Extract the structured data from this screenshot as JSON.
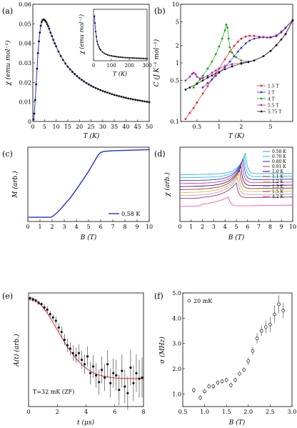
{
  "chart_data": [
    {
      "type": "scatter",
      "panel_label": "(a)",
      "xlabel": "T (K)",
      "ylabel": "χ (emu mol⁻¹)",
      "xlim": [
        0,
        50
      ],
      "ylim": [
        0,
        0.06
      ],
      "xticks": [
        "0",
        "5",
        "10",
        "15",
        "20",
        "25",
        "30",
        "35",
        "40",
        "45",
        "50"
      ],
      "yticks": [
        "0",
        "0.01",
        "0.02",
        "0.03",
        "0.04",
        "0.05",
        "0.06"
      ],
      "x": [
        0.3,
        0.6,
        1.0,
        1.4,
        1.8,
        2.2,
        2.6,
        3.0,
        3.4,
        3.8,
        4.2,
        4.6,
        5.0,
        5.4,
        5.8,
        6.2,
        6.6,
        7.0,
        7.6,
        8.2,
        8.8,
        9.4,
        10,
        11,
        12,
        13,
        14,
        15,
        16,
        17,
        18,
        19,
        20,
        21,
        22,
        23,
        24,
        25,
        26,
        27,
        28,
        29,
        30,
        31,
        32,
        33,
        34,
        35,
        36,
        37,
        38,
        39,
        40,
        41,
        42,
        43,
        44,
        45,
        46,
        47,
        48,
        49,
        50
      ],
      "y": [
        0.001,
        0.004,
        0.011,
        0.019,
        0.027,
        0.035,
        0.041,
        0.0455,
        0.049,
        0.051,
        0.052,
        0.0522,
        0.052,
        0.0515,
        0.0508,
        0.0498,
        0.0488,
        0.0475,
        0.0455,
        0.0437,
        0.0418,
        0.04,
        0.0385,
        0.0358,
        0.0335,
        0.0315,
        0.0297,
        0.0281,
        0.0267,
        0.0254,
        0.0243,
        0.0232,
        0.0222,
        0.0213,
        0.0205,
        0.0197,
        0.019,
        0.0183,
        0.0177,
        0.0171,
        0.0166,
        0.0161,
        0.0156,
        0.0152,
        0.0148,
        0.0144,
        0.014,
        0.0136,
        0.0133,
        0.013,
        0.0127,
        0.0124,
        0.0121,
        0.0118,
        0.0116,
        0.0113,
        0.0111,
        0.0109,
        0.0107,
        0.0105,
        0.0103,
        0.0101,
        0.0099
      ],
      "inset": {
        "xlabel": "T (K)",
        "ylabel": "χ (emu mol⁻¹)",
        "xlim": [
          0,
          300
        ],
        "ylim": [
          0,
          0.06
        ],
        "xticks": [
          "0",
          "100",
          "200",
          "300"
        ],
        "x": [
          5,
          8,
          12,
          16,
          20,
          25,
          30,
          35,
          40,
          50,
          60,
          70,
          80,
          90,
          100,
          110,
          120,
          130,
          140,
          150,
          160,
          170,
          180,
          190,
          200,
          210,
          220,
          230,
          240,
          250,
          260,
          270,
          280,
          290,
          300
        ],
        "y": [
          0.052,
          0.044,
          0.034,
          0.028,
          0.0225,
          0.019,
          0.0162,
          0.014,
          0.0125,
          0.0102,
          0.0087,
          0.0076,
          0.0068,
          0.0062,
          0.0057,
          0.0053,
          0.005,
          0.0047,
          0.0044,
          0.0042,
          0.004,
          0.0038,
          0.0036,
          0.0035,
          0.0034,
          0.0033,
          0.0032,
          0.0031,
          0.003,
          0.0029,
          0.0028,
          0.0027,
          0.0026,
          0.0025,
          0.0024
        ]
      }
    },
    {
      "type": "scatter",
      "panel_label": "(b)",
      "xlabel": "T (K)",
      "ylabel": "C (J K⁻¹ mol⁻¹)",
      "xscale": "log",
      "yscale": "log",
      "xlim": [
        0.3,
        10
      ],
      "ylim": [
        0.1,
        10
      ],
      "xticks": [
        0.5,
        1,
        2,
        5
      ],
      "yticks": [
        0.1,
        0.5,
        1,
        2,
        5,
        10
      ],
      "legend_position": "lower-right",
      "series": [
        {
          "name": "1.5 T",
          "color": "#e8242c",
          "x": [
            0.35,
            0.4,
            0.45,
            0.5,
            0.6,
            0.7,
            0.8,
            0.9,
            1.0,
            1.2,
            1.4,
            1.6,
            1.8,
            2.0,
            2.3,
            2.6,
            3.0,
            3.5,
            4.0,
            4.5,
            5.0,
            6.0,
            7.0,
            8.0,
            10.0
          ],
          "y": [
            0.11,
            0.14,
            0.17,
            0.21,
            0.3,
            0.4,
            0.52,
            0.66,
            0.8,
            1.15,
            1.55,
            1.95,
            2.3,
            2.6,
            2.8,
            2.9,
            2.9,
            2.8,
            2.75,
            2.7,
            2.7,
            2.85,
            3.3,
            3.9,
            5.3
          ]
        },
        {
          "name": "2 T",
          "color": "#2b2bd8",
          "x": [
            0.6,
            0.7,
            0.8,
            0.9,
            1.0,
            1.2,
            1.4,
            1.6,
            1.8,
            2.0,
            2.3,
            2.6,
            3.0,
            3.5,
            4.0,
            5.0,
            6.0,
            7.0,
            8.0,
            10.0
          ],
          "y": [
            0.38,
            0.45,
            0.52,
            0.6,
            0.68,
            0.85,
            1.05,
            1.3,
            1.55,
            1.8,
            2.15,
            2.4,
            2.6,
            2.7,
            2.75,
            2.75,
            2.95,
            3.4,
            4.0,
            5.4
          ]
        },
        {
          "name": "4 T",
          "color": "#14a014",
          "x": [
            0.45,
            0.5,
            0.55,
            0.6,
            0.7,
            0.8,
            0.9,
            1.0,
            1.1,
            1.2,
            1.25,
            1.3,
            1.35,
            1.4,
            1.5,
            1.7,
            2.0,
            2.5,
            3.0,
            4.0,
            5.0,
            6.0,
            8.0,
            10.0
          ],
          "y": [
            0.38,
            0.45,
            0.52,
            0.6,
            0.8,
            1.05,
            1.4,
            1.9,
            2.6,
            3.6,
            4.5,
            4.0,
            2.6,
            1.85,
            1.5,
            1.25,
            1.1,
            1.05,
            1.1,
            1.3,
            1.6,
            2.0,
            3.1,
            5.3
          ]
        },
        {
          "name": "5.5 T",
          "color": "#b21ea8",
          "x": [
            0.35,
            0.4,
            0.43,
            0.45,
            0.48,
            0.5,
            0.55,
            0.6,
            0.7,
            0.8,
            0.9,
            1.0,
            1.2,
            1.5,
            2.0,
            3.0,
            4.0,
            5.0,
            6.0,
            8.0,
            10.0
          ],
          "y": [
            0.5,
            0.58,
            0.65,
            0.68,
            0.64,
            0.58,
            0.54,
            0.55,
            0.6,
            0.68,
            0.74,
            0.8,
            0.88,
            0.95,
            1.0,
            1.1,
            1.3,
            1.6,
            2.0,
            3.1,
            5.3
          ]
        },
        {
          "name": "5.75 T",
          "color": "#111111",
          "x": [
            0.35,
            0.4,
            0.5,
            0.6,
            0.7,
            0.8,
            1.0,
            1.2,
            1.5,
            2.0,
            2.5,
            3.0,
            4.0,
            5.0,
            6.0,
            7.0,
            8.0,
            10.0
          ],
          "y": [
            0.35,
            0.38,
            0.44,
            0.5,
            0.56,
            0.61,
            0.7,
            0.78,
            0.87,
            0.97,
            1.03,
            1.1,
            1.3,
            1.6,
            2.0,
            2.5,
            3.1,
            5.3
          ]
        }
      ]
    },
    {
      "type": "line",
      "panel_label": "(c)",
      "xlabel": "B (T)",
      "ylabel": "M (arb.)",
      "xlim": [
        0,
        10
      ],
      "xticks": [
        "0",
        "1",
        "2",
        "3",
        "4",
        "5",
        "6",
        "7",
        "8",
        "9",
        "10"
      ],
      "series": [
        {
          "name": "0.58 K",
          "color": "#2030d0",
          "x": [
            0,
            0.5,
            1.0,
            1.5,
            1.9,
            2.1,
            2.5,
            3.0,
            3.5,
            4.0,
            4.5,
            5.0,
            5.3,
            5.6,
            5.8,
            6.0,
            6.3,
            7.0,
            8.0,
            9.0,
            10.0
          ],
          "y": [
            0.02,
            0.02,
            0.02,
            0.02,
            0.02,
            0.04,
            0.1,
            0.2,
            0.3,
            0.42,
            0.55,
            0.68,
            0.77,
            0.86,
            0.92,
            0.955,
            0.97,
            0.98,
            0.985,
            0.99,
            0.995
          ]
        }
      ]
    },
    {
      "type": "line",
      "panel_label": "(d)",
      "xlabel": "B (T)",
      "ylabel": "χ (arb.)",
      "xlim": [
        0,
        10
      ],
      "xticks": [
        "0",
        "1",
        "2",
        "3",
        "4",
        "5",
        "6",
        "7",
        "8",
        "9",
        "10"
      ],
      "legend_position": "top-right",
      "series": [
        {
          "name": "0.58 K",
          "color": "#2a9fd6",
          "offset": 0.63,
          "peak": 5.8,
          "amp": 0.28,
          "width": 0.6
        },
        {
          "name": "0.70 K",
          "color": "#00c8c8",
          "offset": 0.59,
          "peak": 5.7,
          "amp": 0.28,
          "width": 0.65
        },
        {
          "name": "0.80 K",
          "color": "#2020e0",
          "offset": 0.55,
          "peak": 5.6,
          "amp": 0.28,
          "width": 0.7
        },
        {
          "name": "0.91 K",
          "color": "#e0205a",
          "offset": 0.51,
          "peak": 5.5,
          "amp": 0.27,
          "width": 0.75
        },
        {
          "name": "1.0 K",
          "color": "#00008b",
          "offset": 0.47,
          "peak": 5.4,
          "amp": 0.26,
          "width": 0.8
        },
        {
          "name": "1.1 K",
          "color": "#8b2020",
          "offset": 0.43,
          "peak": 5.3,
          "amp": 0.25,
          "width": 0.85
        },
        {
          "name": "1.2 K",
          "color": "#d8b020",
          "offset": 0.39,
          "peak": 5.2,
          "amp": 0.24,
          "width": 0.9
        },
        {
          "name": "1.3 K",
          "color": "#a0a0a0",
          "offset": 0.35,
          "peak": 5.1,
          "amp": 0.23,
          "width": 0.95
        },
        {
          "name": "1.5 K",
          "color": "#8b1a8b",
          "offset": 0.31,
          "peak": 5.0,
          "amp": 0.2,
          "width": 1.05
        },
        {
          "name": "4.2 K",
          "color": "#ff40a0",
          "offset": 0.2,
          "peak": 4.3,
          "amp": 0.12,
          "width": 1.6
        }
      ]
    },
    {
      "type": "scatter",
      "panel_label": "(e)",
      "xlabel": "t (μs)",
      "ylabel": "A(t) (arb.)",
      "xlim": [
        0,
        8
      ],
      "xticks": [
        "0",
        "2",
        "4",
        "6",
        "8"
      ],
      "annotation": "T=32 mK (ZF)",
      "x": [
        0.1,
        0.3,
        0.5,
        0.7,
        0.9,
        1.1,
        1.3,
        1.5,
        1.7,
        1.9,
        2.1,
        2.3,
        2.5,
        2.7,
        2.9,
        3.1,
        3.3,
        3.5,
        3.7,
        3.9,
        4.1,
        4.3,
        4.5,
        4.7,
        4.9,
        5.1,
        5.3,
        5.5,
        5.7,
        5.9,
        6.1,
        6.3,
        6.5,
        6.7,
        6.9,
        7.1,
        7.3,
        7.5,
        7.7,
        7.9
      ],
      "y": [
        0.97,
        0.96,
        0.95,
        0.93,
        0.92,
        0.89,
        0.87,
        0.83,
        0.8,
        0.77,
        0.71,
        0.67,
        0.6,
        0.55,
        0.52,
        0.48,
        0.46,
        0.48,
        0.42,
        0.38,
        0.45,
        0.3,
        0.36,
        0.28,
        0.22,
        0.33,
        0.26,
        0.38,
        0.21,
        0.3,
        0.28,
        0.15,
        0.32,
        0.18,
        0.12,
        0.35,
        0.21,
        0.3,
        0.25,
        0.26
      ],
      "err": [
        0.02,
        0.02,
        0.02,
        0.02,
        0.02,
        0.03,
        0.03,
        0.03,
        0.03,
        0.04,
        0.04,
        0.05,
        0.05,
        0.06,
        0.06,
        0.07,
        0.07,
        0.08,
        0.08,
        0.09,
        0.09,
        0.1,
        0.1,
        0.11,
        0.11,
        0.12,
        0.12,
        0.12,
        0.13,
        0.13,
        0.14,
        0.14,
        0.15,
        0.15,
        0.15,
        0.16,
        0.16,
        0.17,
        0.17,
        0.18
      ],
      "fit": {
        "color": "#e03030",
        "a0": 0.98,
        "floor": 0.25,
        "tau": 2.8
      }
    },
    {
      "type": "scatter",
      "panel_label": "(f)",
      "xlabel": "B (T)",
      "ylabel": "σ (MHz)",
      "xlim": [
        0.5,
        3.0
      ],
      "ylim": [
        0.5,
        5.0
      ],
      "xticks": [
        "0.5",
        "1.0",
        "1.5",
        "2.0",
        "2.5",
        "3.0"
      ],
      "yticks": [
        "1.0",
        "2.0",
        "3.0",
        "4.0",
        "5.0"
      ],
      "legend": "20 mK",
      "legend_position": "top-left",
      "x": [
        0.75,
        0.9,
        1.0,
        1.1,
        1.2,
        1.3,
        1.4,
        1.5,
        1.6,
        1.7,
        1.8,
        1.9,
        2.0,
        2.1,
        2.2,
        2.3,
        2.4,
        2.5,
        2.6,
        2.7,
        2.8
      ],
      "y": [
        1.15,
        0.85,
        1.1,
        1.3,
        1.3,
        1.45,
        1.5,
        1.55,
        1.35,
        1.55,
        1.8,
        1.95,
        2.3,
        2.7,
        3.2,
        3.5,
        3.65,
        3.75,
        4.15,
        4.55,
        4.3
      ],
      "err": [
        0.1,
        0.1,
        0.1,
        0.1,
        0.1,
        0.1,
        0.1,
        0.1,
        0.1,
        0.1,
        0.1,
        0.1,
        0.15,
        0.15,
        0.2,
        0.2,
        0.25,
        0.3,
        0.35,
        0.35,
        0.3
      ]
    }
  ]
}
